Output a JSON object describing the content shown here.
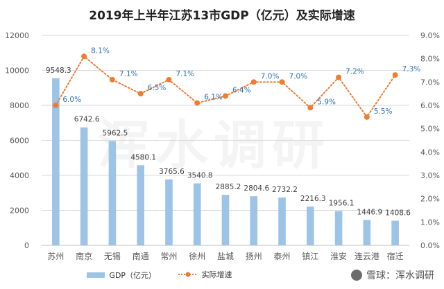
{
  "chart_data": {
    "type": "bar",
    "title": "2019年上半年江苏13市GDP（亿元）及实际增速",
    "categories": [
      "苏州",
      "南京",
      "无锡",
      "南通",
      "常州",
      "徐州",
      "盐城",
      "扬州",
      "泰州",
      "镇江",
      "淮安",
      "连云港",
      "宿迁"
    ],
    "series": [
      {
        "name": "GDP（亿元）",
        "type": "bar",
        "axis": "left",
        "color": "#9dc3e6",
        "values": [
          9548.3,
          6742.6,
          5962.5,
          4580.1,
          3765.6,
          3540.8,
          2885.2,
          2804.6,
          2732.2,
          2216.3,
          1956.1,
          1446.9,
          1408.6
        ],
        "labels": [
          "9548.3",
          "6742.6",
          "5962.5",
          "4580.1",
          "3765.6",
          "3540.8",
          "2885.2",
          "2804.6",
          "2732.2",
          "2216.3",
          "1956.1",
          "1446.9",
          "1408.6"
        ]
      },
      {
        "name": "实际增速",
        "type": "line",
        "axis": "right",
        "color": "#ed7d31",
        "values": [
          6.0,
          8.1,
          7.1,
          6.5,
          7.1,
          6.1,
          6.4,
          7.0,
          7.0,
          5.9,
          7.2,
          5.5,
          7.3
        ],
        "labels": [
          "6.0%",
          "8.1%",
          "7.1%",
          "6.5%",
          "7.1%",
          "6.1%",
          "6.4%",
          "7.0%",
          "7.0%",
          "5.9%",
          "7.2%",
          "5.5%",
          "7.3%"
        ]
      }
    ],
    "y_left": {
      "min": 0,
      "max": 12000,
      "ticks": [
        "0",
        "2000",
        "4000",
        "6000",
        "8000",
        "10000",
        "12000"
      ]
    },
    "y_right": {
      "min": 0,
      "max": 9,
      "ticks": [
        "0.0%",
        "1.0%",
        "2.0%",
        "3.0%",
        "4.0%",
        "5.0%",
        "6.0%",
        "7.0%",
        "8.0%",
        "9.0%"
      ]
    },
    "grid": true,
    "legend_position": "bottom"
  },
  "watermark": "浑水调研",
  "source_mark": "雪球：浑水调研",
  "colors": {
    "axis_text": "#595959",
    "label_text": "#404040",
    "grid": "#d9d9d9"
  }
}
